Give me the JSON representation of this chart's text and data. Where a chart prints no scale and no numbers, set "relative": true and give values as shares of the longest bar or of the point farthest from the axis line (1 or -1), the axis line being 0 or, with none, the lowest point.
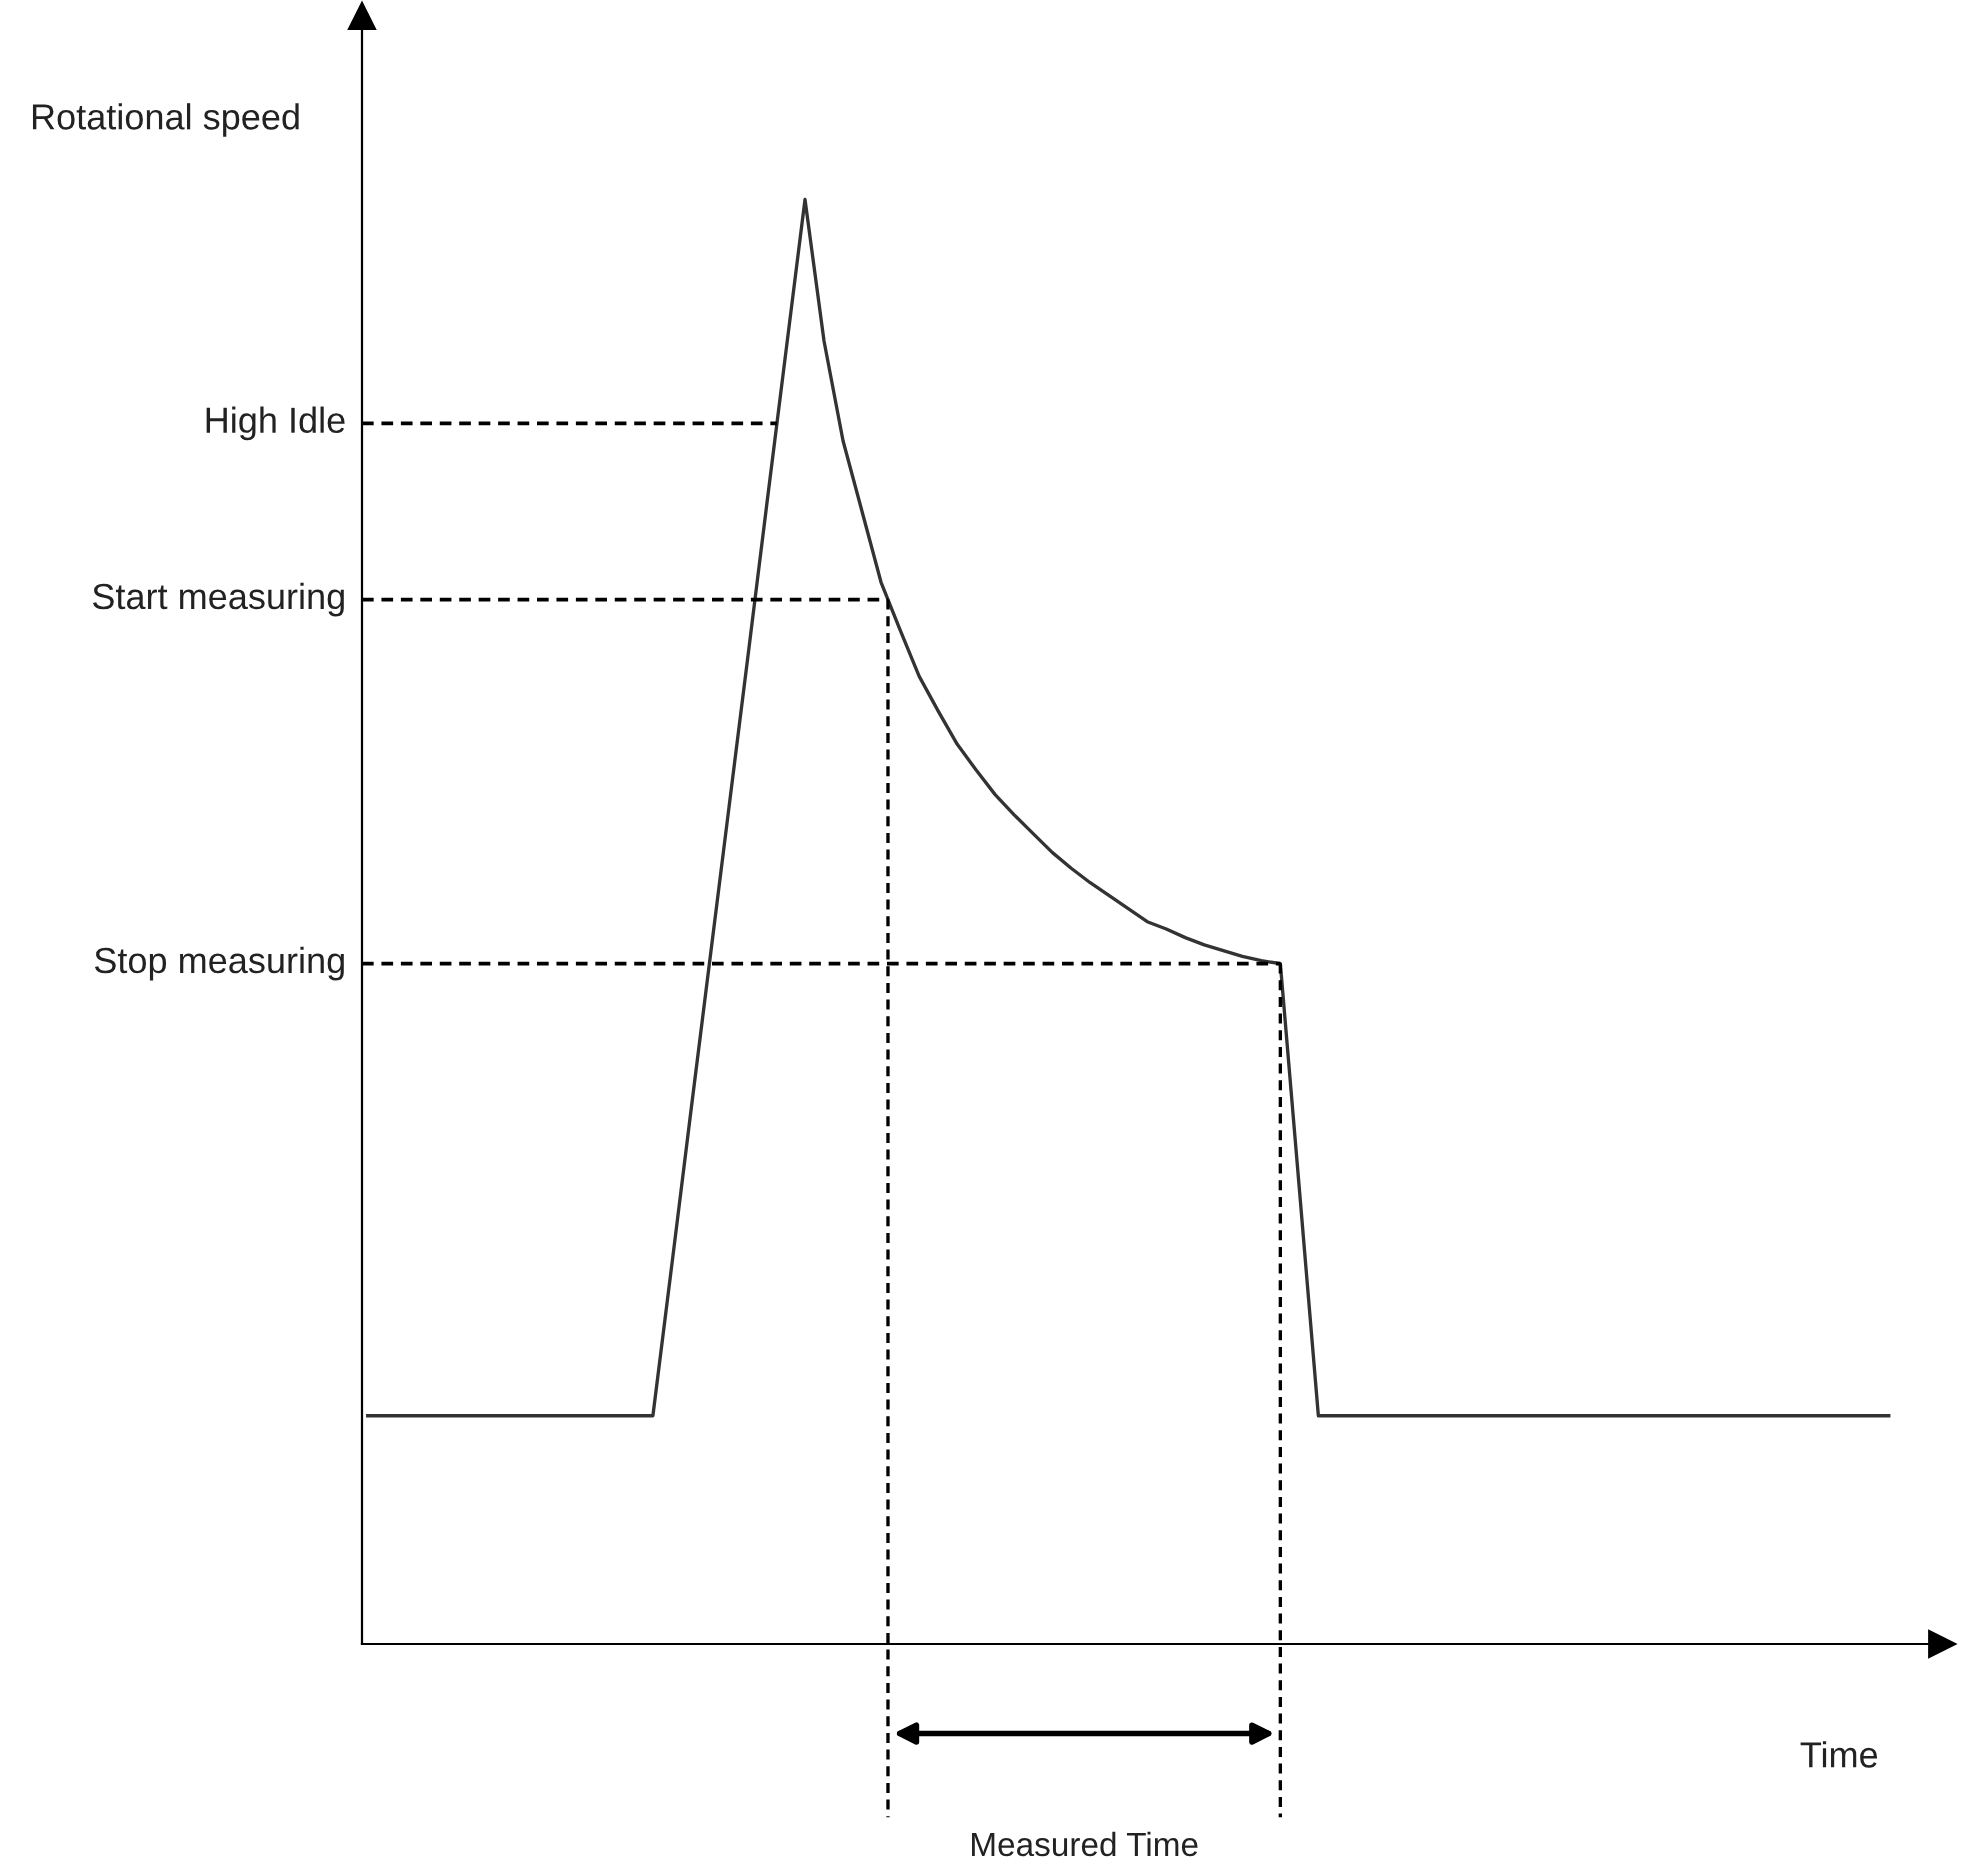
{
  "chart_data": {
    "type": "line",
    "relative": true,
    "xlabel": "Time",
    "ylabel": "Rotational speed",
    "line_style": "solid",
    "categories": [
      null,
      null,
      null,
      null,
      null,
      null,
      null,
      null,
      null,
      null,
      null,
      null,
      null,
      null,
      null,
      null,
      null,
      null,
      null,
      null,
      null,
      null,
      null,
      null,
      null,
      null,
      null,
      null,
      null,
      null,
      null,
      null,
      null,
      null,
      null,
      null,
      null,
      null,
      null,
      null,
      null,
      null,
      null,
      null,
      null,
      null,
      null,
      null,
      null,
      null,
      null,
      null,
      null,
      null,
      null,
      null,
      null,
      null,
      null,
      null,
      null,
      null,
      null,
      null,
      null,
      null,
      null,
      null,
      null,
      null,
      null,
      null,
      null,
      null,
      null,
      null,
      null,
      null,
      null,
      null,
      null
    ],
    "series": [
      {
        "color": "#333333",
        "values": [
          0.158,
          0.158,
          0.158,
          0.158,
          0.158,
          0.158,
          0.158,
          0.158,
          0.158,
          0.158,
          0.158,
          0.158,
          0.158,
          0.158,
          0.158,
          0.158,
          0.263,
          0.369,
          0.474,
          0.579,
          0.684,
          0.79,
          0.895,
          1.0,
          0.902,
          0.833,
          0.784,
          0.735,
          0.702,
          0.67,
          0.646,
          0.623,
          0.605,
          0.588,
          0.574,
          0.561,
          0.548,
          0.537,
          0.527,
          0.518,
          0.509,
          0.5,
          0.495,
          0.489,
          0.484,
          0.48,
          0.476,
          0.473,
          0.471,
          0.315,
          0.158,
          0.158,
          0.158,
          0.158,
          0.158,
          0.158,
          0.158,
          0.158,
          0.158,
          0.158,
          0.158,
          0.158,
          0.158,
          0.158,
          0.158,
          0.158,
          0.158,
          0.158,
          0.158,
          0.158,
          0.158,
          0.158,
          0.158,
          0.158,
          0.158,
          0.158,
          0.158,
          0.158,
          0.158,
          0.158,
          0.158
        ]
      }
    ],
    "ref_lines": [
      {
        "axis": "y",
        "value": 0.845,
        "label": "High Idle",
        "line_style": "dashed"
      },
      {
        "axis": "y",
        "value": 0.723,
        "label": "Start measuring",
        "line_style": "dashed"
      },
      {
        "axis": "y",
        "value": 0.471,
        "label": "Stop measuring",
        "line_style": "dashed"
      }
    ],
    "annotations": [
      "Measured Time"
    ]
  }
}
